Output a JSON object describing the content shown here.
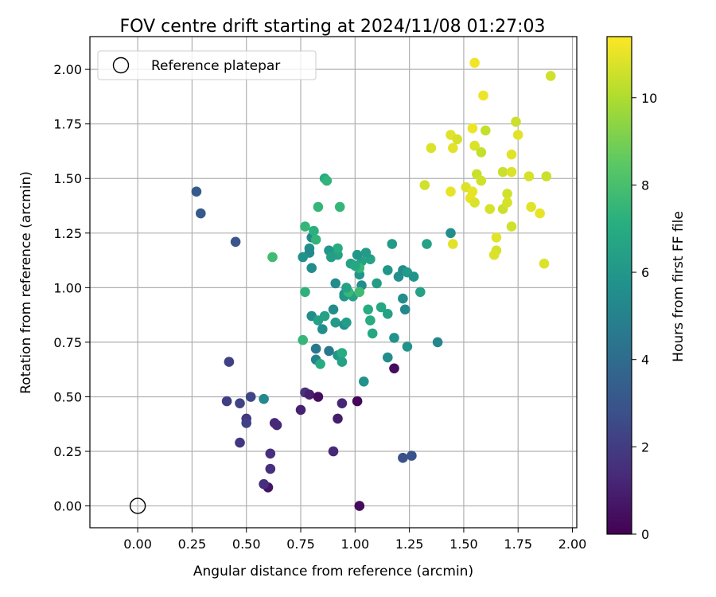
{
  "chart_data": {
    "type": "scatter",
    "title": "FOV centre drift starting at 2024/11/08 01:27:03",
    "xlabel": "Angular distance from reference (arcmin)",
    "ylabel": "Rotation from reference (arcmin)",
    "xlim": [
      -0.22,
      2.02
    ],
    "ylim": [
      -0.1,
      2.15
    ],
    "xticks": [
      "0.00",
      "0.25",
      "0.50",
      "0.75",
      "1.00",
      "1.25",
      "1.50",
      "1.75",
      "2.00"
    ],
    "xtick_values": [
      0,
      0.25,
      0.5,
      0.75,
      1.0,
      1.25,
      1.5,
      1.75,
      2.0
    ],
    "yticks": [
      "0.00",
      "0.25",
      "0.50",
      "0.75",
      "1.00",
      "1.25",
      "1.50",
      "1.75",
      "2.00"
    ],
    "ytick_values": [
      0,
      0.25,
      0.5,
      0.75,
      1.0,
      1.25,
      1.5,
      1.75,
      2.0
    ],
    "grid": true,
    "legend": {
      "placement": "top-left",
      "label": "Reference platepar"
    },
    "reference_point": {
      "x": 0.0,
      "y": 0.0
    },
    "colorbar": {
      "label": "Hours from first FF file",
      "colormap": "viridis",
      "range": [
        0,
        11.4
      ],
      "ticks": [
        "0",
        "2",
        "4",
        "6",
        "8",
        "10"
      ],
      "tick_values": [
        0,
        2,
        4,
        6,
        8,
        10
      ]
    },
    "points": [
      [
        1.02,
        0.0,
        0.3
      ],
      [
        0.6,
        0.085,
        0.6
      ],
      [
        0.58,
        0.1,
        1.5
      ],
      [
        0.61,
        0.17,
        1.5
      ],
      [
        0.61,
        0.24,
        1.5
      ],
      [
        0.9,
        0.25,
        1.3
      ],
      [
        0.47,
        0.29,
        1.8
      ],
      [
        0.63,
        0.38,
        1.3
      ],
      [
        0.64,
        0.37,
        1.3
      ],
      [
        0.5,
        0.4,
        1.8
      ],
      [
        0.5,
        0.38,
        2.2
      ],
      [
        0.41,
        0.48,
        2.1
      ],
      [
        0.47,
        0.47,
        2.3
      ],
      [
        0.52,
        0.5,
        2.4
      ],
      [
        0.42,
        0.66,
        2.2
      ],
      [
        0.75,
        0.44,
        1.1
      ],
      [
        0.77,
        0.52,
        1.6
      ],
      [
        0.79,
        0.51,
        1.0
      ],
      [
        0.83,
        0.5,
        0.4
      ],
      [
        0.92,
        0.4,
        0.9
      ],
      [
        0.94,
        0.47,
        1.2
      ],
      [
        1.01,
        0.48,
        0.2
      ],
      [
        1.18,
        0.63,
        0.4
      ],
      [
        1.22,
        0.22,
        2.8
      ],
      [
        1.26,
        0.23,
        2.9
      ],
      [
        0.27,
        1.44,
        3.2
      ],
      [
        0.29,
        1.34,
        3.2
      ],
      [
        0.45,
        1.21,
        3.0
      ],
      [
        0.58,
        0.49,
        5.3
      ],
      [
        0.82,
        0.72,
        4.6
      ],
      [
        0.88,
        0.71,
        4.6
      ],
      [
        0.82,
        0.67,
        5.0
      ],
      [
        0.92,
        0.69,
        5.9
      ],
      [
        0.94,
        0.66,
        6.5
      ],
      [
        0.94,
        0.7,
        7.0
      ],
      [
        0.84,
        0.65,
        7.0
      ],
      [
        1.04,
        0.57,
        5.8
      ],
      [
        0.76,
        0.76,
        7.5
      ],
      [
        0.8,
        0.87,
        5.5
      ],
      [
        0.83,
        0.85,
        6.5
      ],
      [
        0.85,
        0.81,
        5.5
      ],
      [
        0.86,
        0.87,
        6.5
      ],
      [
        0.9,
        0.9,
        5.5
      ],
      [
        0.91,
        0.84,
        6.2
      ],
      [
        0.95,
        0.83,
        5.5
      ],
      [
        0.96,
        0.84,
        6.3
      ],
      [
        0.95,
        0.97,
        5.5
      ],
      [
        0.95,
        0.96,
        6.0
      ],
      [
        0.97,
        0.98,
        7.0
      ],
      [
        0.99,
        0.96,
        6.5
      ],
      [
        1.03,
        1.01,
        5.5
      ],
      [
        1.02,
        1.06,
        6.0
      ],
      [
        1.06,
        0.9,
        7.0
      ],
      [
        1.07,
        0.85,
        7.0
      ],
      [
        1.08,
        0.79,
        6.8
      ],
      [
        1.12,
        0.91,
        6.8
      ],
      [
        1.15,
        0.88,
        6.5
      ],
      [
        1.15,
        0.68,
        5.5
      ],
      [
        1.18,
        0.77,
        5.8
      ],
      [
        1.22,
        0.95,
        5.5
      ],
      [
        1.23,
        0.9,
        5.3
      ],
      [
        1.24,
        0.73,
        5.8
      ],
      [
        1.3,
        0.98,
        6.5
      ],
      [
        1.38,
        0.75,
        5.2
      ],
      [
        1.2,
        1.05,
        5.6
      ],
      [
        1.22,
        1.08,
        5.5
      ],
      [
        1.24,
        1.07,
        6.2
      ],
      [
        1.27,
        1.05,
        5.8
      ],
      [
        1.15,
        1.08,
        6.0
      ],
      [
        1.17,
        1.2,
        6.2
      ],
      [
        1.33,
        1.2,
        6.5
      ],
      [
        1.44,
        1.25,
        5.5
      ],
      [
        1.1,
        1.02,
        6.3
      ],
      [
        1.07,
        1.13,
        6.5
      ],
      [
        1.05,
        1.16,
        6.2
      ],
      [
        1.03,
        1.12,
        6.5
      ],
      [
        1.02,
        1.09,
        7.5
      ],
      [
        1.01,
        1.15,
        6.0
      ],
      [
        0.98,
        1.11,
        6.5
      ],
      [
        0.92,
        1.15,
        6.5
      ],
      [
        0.92,
        1.18,
        7.0
      ],
      [
        0.91,
        1.02,
        5.5
      ],
      [
        0.88,
        1.17,
        6.0
      ],
      [
        0.8,
        1.09,
        5.5
      ],
      [
        0.79,
        1.18,
        5.6
      ],
      [
        0.79,
        1.16,
        5.4
      ],
      [
        0.76,
        1.14,
        5.7
      ],
      [
        0.8,
        1.23,
        5.3
      ],
      [
        0.81,
        1.26,
        7.2
      ],
      [
        0.82,
        1.22,
        7.4
      ],
      [
        0.77,
        1.28,
        7.5
      ],
      [
        0.62,
        1.14,
        7.8
      ],
      [
        0.83,
        1.37,
        7.5
      ],
      [
        0.93,
        1.37,
        7.5
      ],
      [
        0.86,
        1.5,
        7.0
      ],
      [
        0.87,
        1.49,
        7.4
      ],
      [
        0.77,
        0.98,
        7.3
      ],
      [
        0.97,
        0.98,
        7.6
      ],
      [
        1.02,
        0.98,
        7.8
      ],
      [
        0.96,
        1.0,
        6.5
      ],
      [
        0.89,
        1.14,
        6.4
      ],
      [
        1.0,
        1.1,
        6.8
      ],
      [
        1.45,
        1.2,
        10.9
      ],
      [
        1.32,
        1.47,
        10.6
      ],
      [
        1.35,
        1.64,
        10.8
      ],
      [
        1.44,
        1.7,
        10.9
      ],
      [
        1.45,
        1.64,
        10.9
      ],
      [
        1.47,
        1.68,
        10.7
      ],
      [
        1.44,
        1.44,
        11.0
      ],
      [
        1.51,
        1.46,
        10.8
      ],
      [
        1.53,
        1.41,
        11.0
      ],
      [
        1.54,
        1.44,
        11.0
      ],
      [
        1.55,
        1.39,
        10.8
      ],
      [
        1.56,
        1.52,
        10.5
      ],
      [
        1.58,
        1.49,
        10.6
      ],
      [
        1.55,
        1.65,
        10.8
      ],
      [
        1.58,
        1.62,
        10.4
      ],
      [
        1.54,
        1.73,
        11.1
      ],
      [
        1.6,
        1.72,
        10.4
      ],
      [
        1.55,
        2.03,
        11.2
      ],
      [
        1.59,
        1.88,
        11.1
      ],
      [
        1.62,
        1.36,
        10.7
      ],
      [
        1.65,
        1.23,
        10.9
      ],
      [
        1.65,
        1.17,
        10.7
      ],
      [
        1.64,
        1.15,
        10.8
      ],
      [
        1.68,
        1.36,
        10.5
      ],
      [
        1.68,
        1.53,
        10.5
      ],
      [
        1.7,
        1.43,
        10.6
      ],
      [
        1.7,
        1.39,
        10.7
      ],
      [
        1.72,
        1.28,
        10.6
      ],
      [
        1.72,
        1.53,
        10.8
      ],
      [
        1.72,
        1.61,
        10.9
      ],
      [
        1.74,
        1.76,
        10.5
      ],
      [
        1.75,
        1.7,
        10.9
      ],
      [
        1.8,
        1.51,
        10.7
      ],
      [
        1.81,
        1.37,
        10.9
      ],
      [
        1.85,
        1.34,
        11.0
      ],
      [
        1.87,
        1.11,
        10.8
      ],
      [
        1.88,
        1.51,
        10.5
      ],
      [
        1.9,
        1.97,
        10.6
      ]
    ]
  }
}
